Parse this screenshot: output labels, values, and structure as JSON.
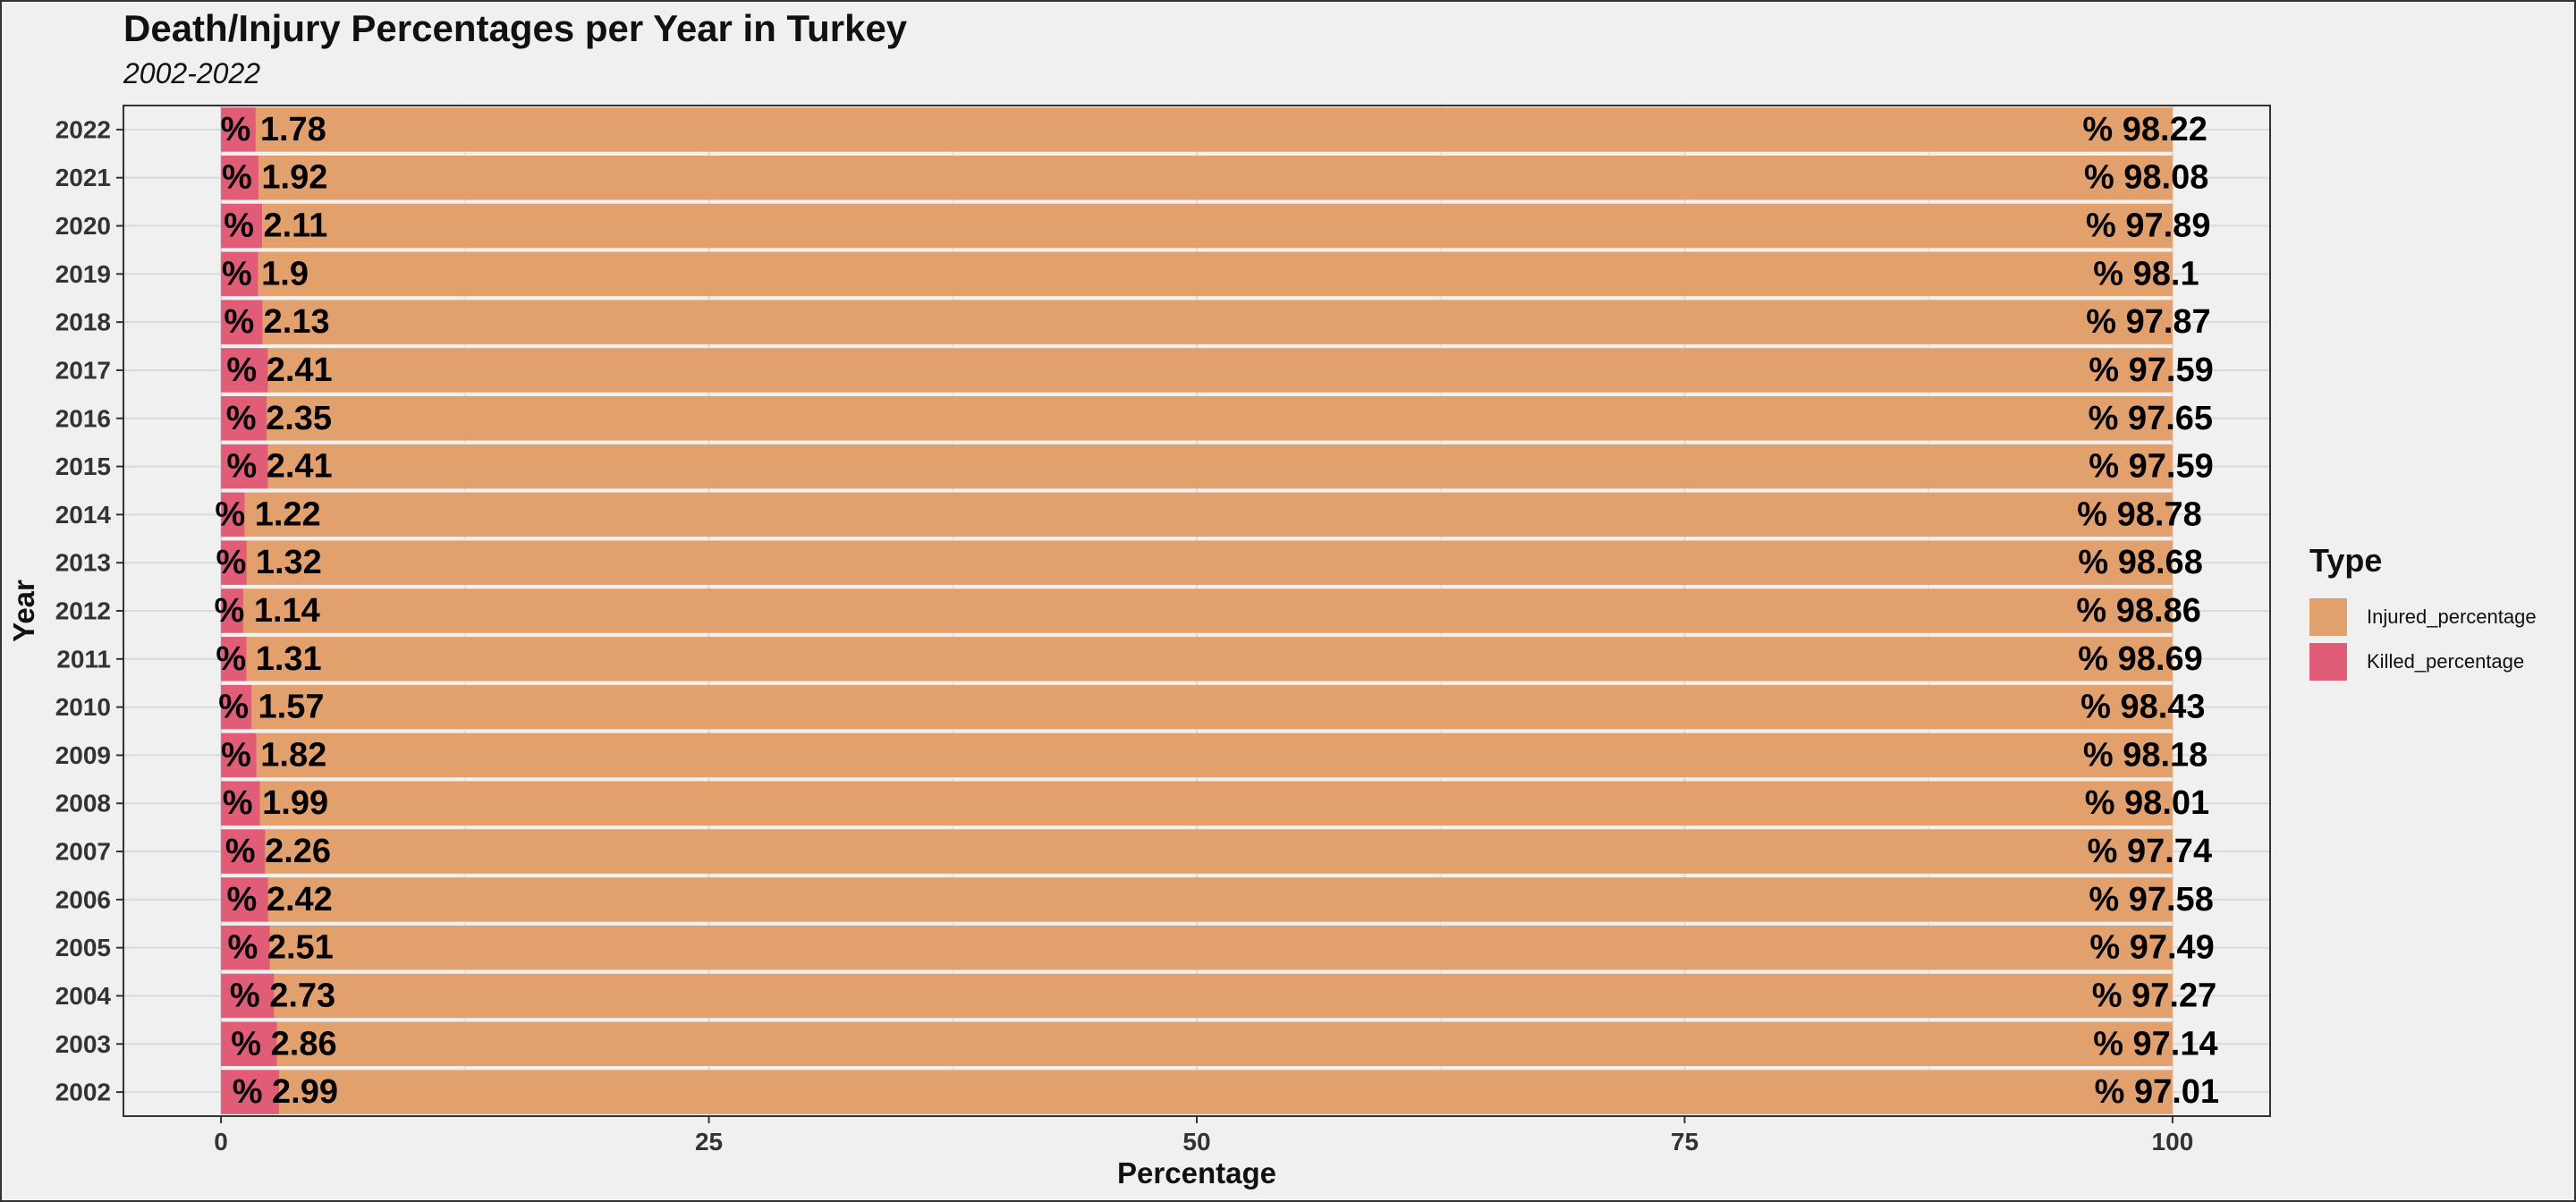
{
  "title": "Death/Injury Percentages per Year in Turkey",
  "subtitle": "2002-2022",
  "colors": {
    "injured": "#e2a16c",
    "killed": "#e05c77",
    "panel_border": "#333333",
    "grid": "#dadada"
  },
  "legend": {
    "title": "Type",
    "items": [
      {
        "label": "Injured_percentage",
        "color": "#e2a16c"
      },
      {
        "label": "Killed_percentage",
        "color": "#e05c77"
      }
    ]
  },
  "chart_data": {
    "type": "bar",
    "orientation": "horizontal",
    "stacked": true,
    "xlabel": "Percentage",
    "ylabel": "Year",
    "xlim": [
      -5,
      105
    ],
    "xticks": [
      0,
      25,
      50,
      75,
      100
    ],
    "grid": true,
    "legend_position": "right",
    "label_prefix": "% ",
    "categories": [
      "2022",
      "2021",
      "2020",
      "2019",
      "2018",
      "2017",
      "2016",
      "2015",
      "2014",
      "2013",
      "2012",
      "2011",
      "2010",
      "2009",
      "2008",
      "2007",
      "2006",
      "2005",
      "2004",
      "2003",
      "2002"
    ],
    "series": [
      {
        "name": "Killed_percentage",
        "values": [
          1.78,
          1.92,
          2.11,
          1.9,
          2.13,
          2.41,
          2.35,
          2.41,
          1.22,
          1.32,
          1.14,
          1.31,
          1.57,
          1.82,
          1.99,
          2.26,
          2.42,
          2.51,
          2.73,
          2.86,
          2.99
        ]
      },
      {
        "name": "Injured_percentage",
        "values": [
          98.22,
          98.08,
          97.89,
          98.1,
          97.87,
          97.59,
          97.65,
          97.59,
          98.78,
          98.68,
          98.86,
          98.69,
          98.43,
          98.18,
          98.01,
          97.74,
          97.58,
          97.49,
          97.27,
          97.14,
          97.01
        ]
      }
    ]
  }
}
